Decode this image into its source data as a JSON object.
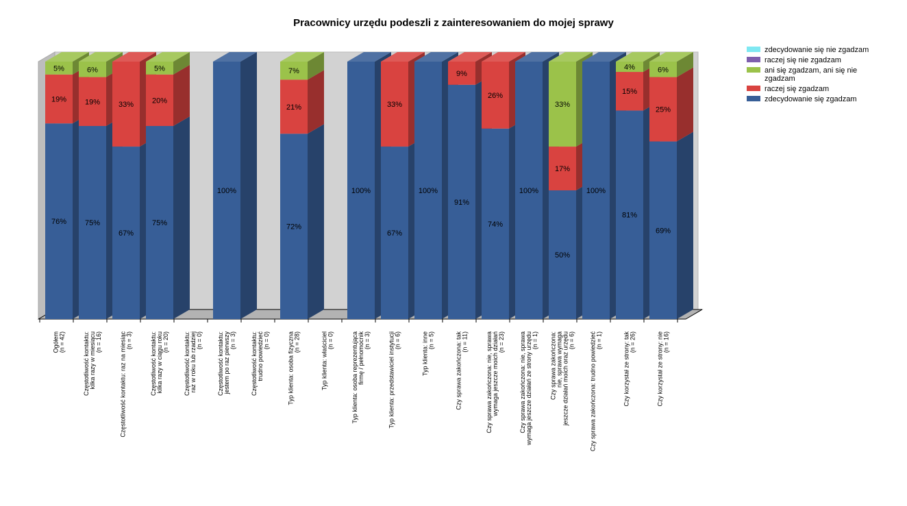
{
  "chart_data": {
    "type": "bar",
    "stacked": true,
    "percent": true,
    "title": "Pracownicy urzędu podeszli z zainteresowaniem do mojej sprawy",
    "ylim": [
      0,
      100
    ],
    "series": [
      {
        "name": "zdecydowanie się zgadzam",
        "color": "#375e97",
        "values": [
          76,
          75,
          67,
          75,
          0,
          100,
          0,
          72,
          0,
          100,
          67,
          100,
          91,
          74,
          100,
          50,
          100,
          81,
          69
        ]
      },
      {
        "name": "raczej się zgadzam",
        "color": "#d94340",
        "values": [
          19,
          19,
          33,
          20,
          0,
          0,
          0,
          21,
          0,
          0,
          33,
          0,
          9,
          26,
          0,
          17,
          0,
          15,
          25
        ]
      },
      {
        "name": "ani się zgadzam, ani się nie zgadzam",
        "color": "#9bc24a",
        "values": [
          5,
          6,
          0,
          5,
          0,
          0,
          0,
          7,
          0,
          0,
          0,
          0,
          0,
          0,
          0,
          33,
          0,
          4,
          6
        ]
      },
      {
        "name": "raczej się nie zgadzam",
        "color": "#7e5fae",
        "values": [
          0,
          0,
          0,
          0,
          0,
          0,
          0,
          0,
          0,
          0,
          0,
          0,
          0,
          0,
          0,
          0,
          0,
          0,
          0
        ]
      },
      {
        "name": "zdecydowanie się nie zgadzam",
        "color": "#7fe8f2",
        "values": [
          0,
          0,
          0,
          0,
          0,
          0,
          0,
          0,
          0,
          0,
          0,
          0,
          0,
          0,
          0,
          0,
          0,
          0,
          0
        ]
      }
    ],
    "categories": [
      [
        "Ogółem",
        "(n = 42)"
      ],
      [
        "Częstotliwość kontaktu:",
        "kilka razy w miesiącu",
        "(n = 16)"
      ],
      [
        "Częstotliwość kontaktu: raz na miesiąc",
        "(n = 3)"
      ],
      [
        "Częstotliwość kontaktu:",
        "kilka razy w ciągu roku",
        "(n = 20)"
      ],
      [
        "Częstotliwość kontaktu:",
        "raz w roku lub rzadziej",
        "(n = 0)"
      ],
      [
        "Częstotliwość kontaktu:",
        "jestem po raz pierwszy",
        "(n = 3)"
      ],
      [
        "Częstotliwość kontaktu:",
        "trudno powiedzieć",
        "(n = 0)"
      ],
      [
        "Typ klienta: osoba fizyczna",
        "(n = 28)"
      ],
      [
        "Typ klienta: właściciel",
        "(n = 0)"
      ],
      [
        "Typ klienta: osoba reprezentująca",
        "firmę / pełnomocnik",
        "(n = 3)"
      ],
      [
        "Typ klienta: przedstawiciel instytucji",
        "(n = 6)"
      ],
      [
        "Typ klienta: inne",
        "(n = 5)"
      ],
      [
        "Czy sprawa zakończona: tak",
        "(n = 11)"
      ],
      [
        "Czy sprawa zakończona: nie, sprawa",
        "wymaga jeszcze moich działań",
        "(n = 23)"
      ],
      [
        "Czy sprawa zakończona: nie, sprawa",
        "wymaga jeszcze działań ze strony urzędu",
        "(n = 1)"
      ],
      [
        "Czy sprawa zakończona:",
        "nie, sprawa wymaga",
        "jeszcze działań moich oraz urzędu",
        "(n = 6)"
      ],
      [
        "Czy sprawa zakończona: trudno powiedzieć",
        "(n = 1)"
      ],
      [
        "Czy korzystał ze strony: tak",
        "(n = 26)"
      ],
      [
        "Czy korzystał ze strony: nie",
        "(n = 16)"
      ]
    ],
    "legend": {
      "position": "right",
      "entries": [
        {
          "label": "zdecydowanie się nie zgadzam",
          "color": "#7fe8f2"
        },
        {
          "label": "raczej się nie zgadzam",
          "color": "#7e5fae"
        },
        {
          "label": "ani się zgadzam, ani się nie zgadzam",
          "color": "#9bc24a"
        },
        {
          "label": "raczej się zgadzam",
          "color": "#d94340"
        },
        {
          "label": "zdecydowanie się zgadzam",
          "color": "#375e97"
        }
      ]
    }
  }
}
